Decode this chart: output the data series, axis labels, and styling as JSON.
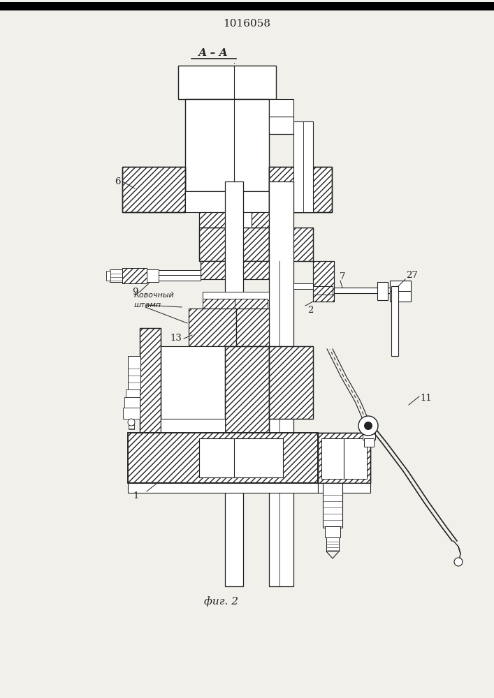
{
  "title": "1016058",
  "section_label": "А – А",
  "fig_label": "фиг. 2",
  "annotation_text": "Ковочный\nштамп",
  "bg_color": "#f2f0eb",
  "line_color": "#222222"
}
